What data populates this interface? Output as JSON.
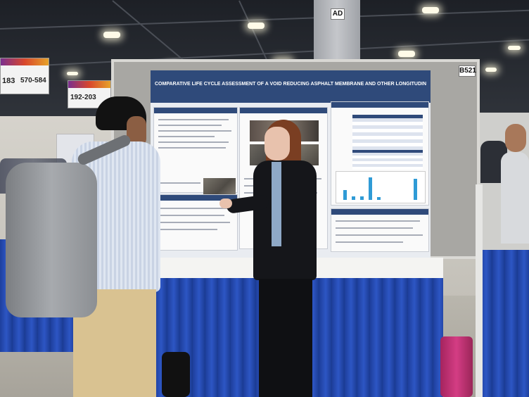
{
  "scene": {
    "aisle_signs": [
      {
        "text": "192-203"
      },
      {
        "text": "570-584"
      },
      {
        "text": "183"
      }
    ],
    "booth_number": "B521",
    "pillar_code": "AD",
    "poster_title": "COMPARATIVE LIFE CYCLE ASSESSMENT OF A VOID REDUCING ASPHALT MEMBRANE AND OTHER LONGITUDINAL JOINT TREATMENTS",
    "colors": {
      "poster_header": "#2f4a7a",
      "table_skirt": "#2d56c4",
      "chart_bars": "#2f9bd6"
    }
  }
}
